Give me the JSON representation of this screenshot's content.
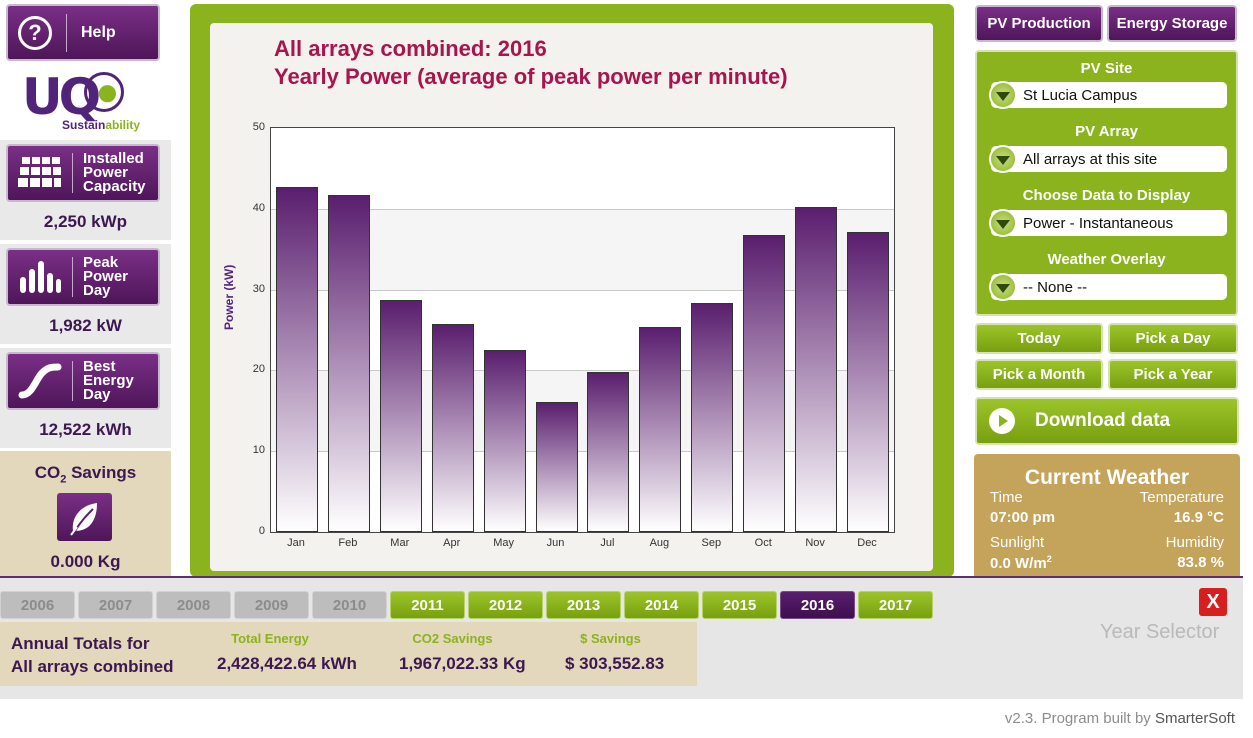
{
  "help": {
    "label": "Help",
    "icon": "question-icon"
  },
  "logo": {
    "letters": "UQ",
    "text_a": "Sustain",
    "text_b": "ability"
  },
  "stats": [
    {
      "name": "installed-power-capacity",
      "label": "Installed Power Capacity",
      "line1": "Installed",
      "line2": "Power",
      "line3": "Capacity",
      "value": "2,250 kWp",
      "icon": "solar-panel-icon"
    },
    {
      "name": "peak-power-day",
      "label": "Peak Power Day",
      "line1": "Peak",
      "line2": "Power",
      "line3": "Day",
      "value": "1,982 kW",
      "icon": "bar-chart-icon"
    },
    {
      "name": "best-energy-day",
      "label": "Best Energy Day",
      "line1": "Best",
      "line2": "Energy",
      "line3": "Day",
      "value": "12,522 kWh",
      "icon": "energy-curve-icon"
    }
  ],
  "co2": {
    "title_pre": "CO",
    "title_sub": "2",
    "title_post": " Savings",
    "value": "0.000 Kg",
    "icon": "leaf-icon"
  },
  "chart_data": {
    "type": "bar",
    "title": "All arrays combined: 2016",
    "subtitle": "Yearly Power (average of peak power per minute)",
    "ylabel": "Power (kW)",
    "xlabel": "",
    "ylim": [
      0,
      50
    ],
    "yticks": [
      0,
      10,
      20,
      30,
      40,
      50
    ],
    "categories": [
      "Jan",
      "Feb",
      "Mar",
      "Apr",
      "May",
      "Jun",
      "Jul",
      "Aug",
      "Sep",
      "Oct",
      "Nov",
      "Dec"
    ],
    "values": [
      42.7,
      41.7,
      28.7,
      25.8,
      22.5,
      16.1,
      19.8,
      25.4,
      28.4,
      36.8,
      40.2,
      37.1
    ],
    "grid": true,
    "legend": "none"
  },
  "tabs": [
    {
      "label": "PV Production"
    },
    {
      "label": "Energy Storage"
    }
  ],
  "controls": {
    "pv_site": {
      "label": "PV Site",
      "value": "St Lucia Campus"
    },
    "pv_array": {
      "label": "PV Array",
      "value": "All arrays at this site"
    },
    "data_display": {
      "label": "Choose Data to Display",
      "value": "Power - Instantaneous"
    },
    "weather_overlay": {
      "label": "Weather Overlay",
      "value": "-- None --"
    }
  },
  "date_buttons": {
    "today": "Today",
    "pick_day": "Pick a Day",
    "pick_month": "Pick a Month",
    "pick_year": "Pick a Year"
  },
  "download": {
    "label": "Download data"
  },
  "weather": {
    "title": "Current Weather",
    "time_label": "Time",
    "time_value": "07:00 pm",
    "temp_label": "Temperature",
    "temp_value": "16.9 °C",
    "sun_label": "Sunlight",
    "sun_value_pre": "0.0 W/m",
    "sun_value_sup": "2",
    "hum_label": "Humidity",
    "hum_value": "83.8 %"
  },
  "years": [
    {
      "label": "2006",
      "state": "disabled"
    },
    {
      "label": "2007",
      "state": "disabled"
    },
    {
      "label": "2008",
      "state": "disabled"
    },
    {
      "label": "2009",
      "state": "disabled"
    },
    {
      "label": "2010",
      "state": "disabled"
    },
    {
      "label": "2011",
      "state": "enabled"
    },
    {
      "label": "2012",
      "state": "enabled"
    },
    {
      "label": "2013",
      "state": "enabled"
    },
    {
      "label": "2014",
      "state": "enabled"
    },
    {
      "label": "2015",
      "state": "enabled"
    },
    {
      "label": "2016",
      "state": "selected"
    },
    {
      "label": "2017",
      "state": "enabled"
    }
  ],
  "year_selector": {
    "label": "Year Selector",
    "close": "X"
  },
  "totals": {
    "label_line1": "Annual Totals for",
    "label_line2": "All arrays combined",
    "energy_label": "Total Energy",
    "energy_value": "2,428,422.64 kWh",
    "co2_label": "CO2 Savings",
    "co2_value": "1,967,022.33 Kg",
    "savings_label": "$ Savings",
    "savings_value": "$ 303,552.83"
  },
  "footer": {
    "version": "v2.3. Program built by ",
    "brand": "SmarterSoft"
  },
  "colors": {
    "purple": "#51247a",
    "green": "#8bb31d",
    "title": "#a8154e",
    "tan": "#e3d7bc"
  }
}
